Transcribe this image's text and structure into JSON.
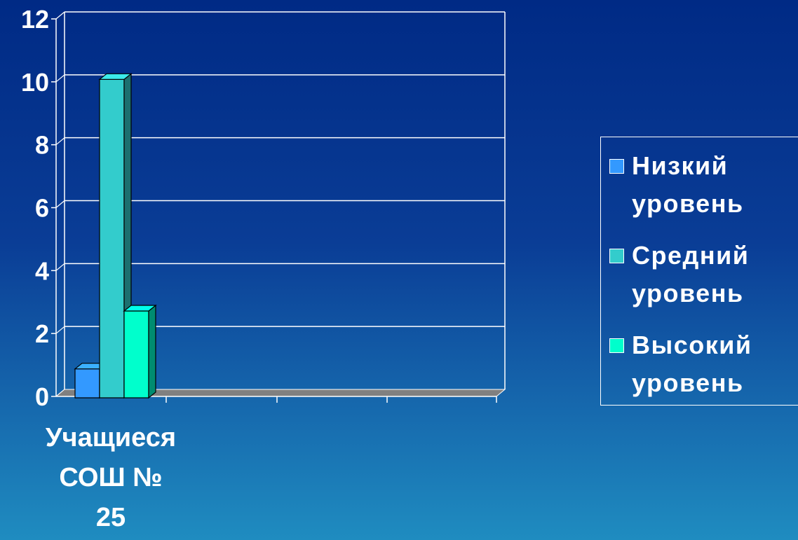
{
  "chart_data": {
    "type": "bar",
    "categories": [
      "Учащиеся\nСОШ №\n25"
    ],
    "series": [
      {
        "name": "Низкий уровень",
        "color": "#3399ff",
        "values": [
          1
        ]
      },
      {
        "name": "Средний уровень",
        "color": "#33cccc",
        "values": [
          11
        ]
      },
      {
        "name": "Высокий уровень",
        "color": "#00ffcc",
        "values": [
          3
        ]
      }
    ],
    "ylim": [
      0,
      12
    ],
    "yticks": [
      0,
      2,
      4,
      6,
      8,
      10,
      12
    ],
    "title": "",
    "xlabel": "",
    "ylabel": "",
    "grid": true,
    "legend_position": "right",
    "three_d": true,
    "colors": {
      "axis": "#ffffff",
      "grid": "#ffffff",
      "floor": "#808080",
      "text": "#ffffff"
    }
  }
}
